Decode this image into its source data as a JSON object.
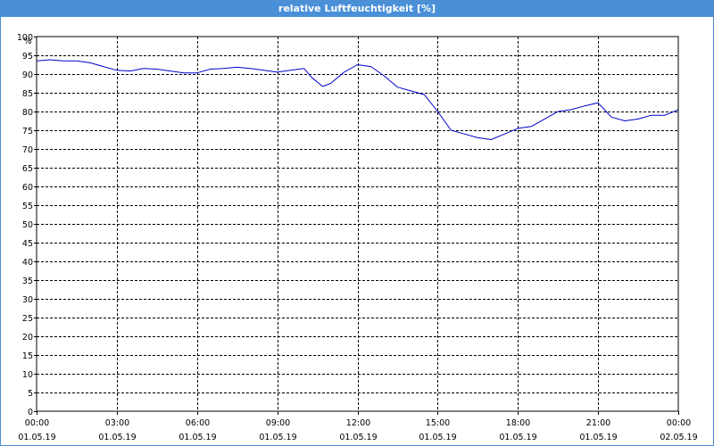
{
  "window": {
    "title": "relative Luftfeuchtigkeit [%]"
  },
  "chart_data": {
    "type": "line",
    "title": "relative Luftfeuchtigkeit [%]",
    "ylabel": "%",
    "ylim": [
      0,
      100
    ],
    "xlim": [
      "01.05.19 00:00",
      "02.05.19 00:00"
    ],
    "grid": true,
    "y_ticks": [
      0,
      5,
      10,
      15,
      20,
      25,
      30,
      35,
      40,
      45,
      50,
      55,
      60,
      65,
      70,
      75,
      80,
      85,
      90,
      95,
      100
    ],
    "x_ticks": [
      {
        "time": "00:00",
        "date": "01.05.19",
        "hour": 0
      },
      {
        "time": "03:00",
        "date": "01.05.19",
        "hour": 3
      },
      {
        "time": "06:00",
        "date": "01.05.19",
        "hour": 6
      },
      {
        "time": "09:00",
        "date": "01.05.19",
        "hour": 9
      },
      {
        "time": "12:00",
        "date": "01.05.19",
        "hour": 12
      },
      {
        "time": "15:00",
        "date": "01.05.19",
        "hour": 15
      },
      {
        "time": "18:00",
        "date": "01.05.19",
        "hour": 18
      },
      {
        "time": "21:00",
        "date": "01.05.19",
        "hour": 21
      },
      {
        "time": "00:00",
        "date": "02.05.19",
        "hour": 24
      }
    ],
    "colors": {
      "line": "#0000cc",
      "grid": "#000000"
    },
    "series": [
      {
        "x": [
          0,
          0.5,
          1,
          1.5,
          2,
          2.5,
          3,
          3.5,
          4,
          4.5,
          5,
          5.5,
          6,
          6.5,
          7,
          7.5,
          8,
          8.5,
          9,
          9.5,
          10,
          10.3,
          10.7,
          11,
          11.5,
          12,
          12.5,
          13,
          13.5,
          14,
          14.5,
          15,
          15.5,
          16,
          16.5,
          17,
          17.5,
          18,
          18.5,
          19,
          19.5,
          20,
          20.5,
          21,
          21.5,
          22,
          22.5,
          23,
          23.5,
          24
        ],
        "y": [
          93.5,
          93.8,
          93.5,
          93.5,
          93.0,
          92.0,
          91.0,
          90.8,
          91.5,
          91.3,
          90.8,
          90.3,
          90.3,
          91.3,
          91.5,
          91.8,
          91.5,
          91.0,
          90.5,
          91.0,
          91.5,
          89.0,
          86.7,
          87.5,
          90.5,
          92.5,
          92.0,
          89.5,
          86.5,
          85.5,
          84.5,
          80.0,
          75.0,
          74.0,
          73.0,
          72.5,
          74.0,
          75.5,
          76.0,
          78.0,
          80.0,
          80.5,
          81.5,
          82.3,
          78.5,
          77.5,
          78.0,
          79.0,
          79.0,
          80.5
        ]
      }
    ]
  }
}
